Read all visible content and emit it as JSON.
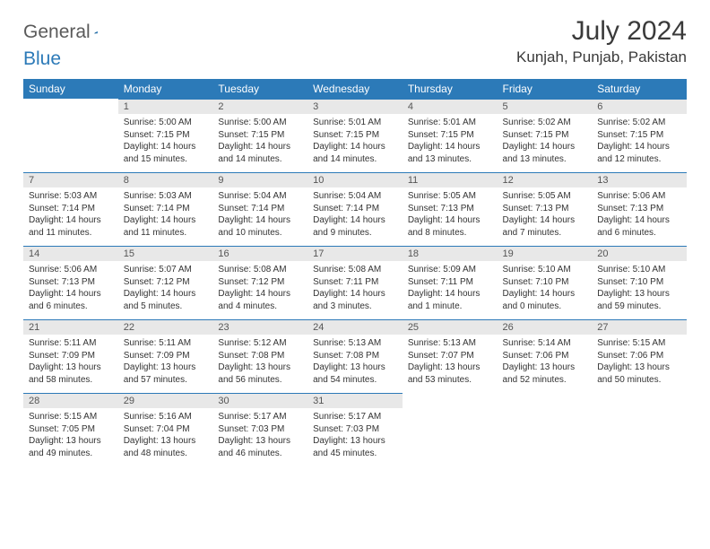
{
  "brand": {
    "part1": "General",
    "part2": "Blue"
  },
  "title": "July 2024",
  "location": "Kunjah, Punjab, Pakistan",
  "colors": {
    "accent": "#2c7ab8",
    "daynum_bg": "#e8e8e8",
    "text": "#333333"
  },
  "weekdays": [
    "Sunday",
    "Monday",
    "Tuesday",
    "Wednesday",
    "Thursday",
    "Friday",
    "Saturday"
  ],
  "weeks": [
    [
      {
        "empty": true
      },
      {
        "n": "1",
        "sr": "5:00 AM",
        "ss": "7:15 PM",
        "dl": "14 hours and 15 minutes."
      },
      {
        "n": "2",
        "sr": "5:00 AM",
        "ss": "7:15 PM",
        "dl": "14 hours and 14 minutes."
      },
      {
        "n": "3",
        "sr": "5:01 AM",
        "ss": "7:15 PM",
        "dl": "14 hours and 14 minutes."
      },
      {
        "n": "4",
        "sr": "5:01 AM",
        "ss": "7:15 PM",
        "dl": "14 hours and 13 minutes."
      },
      {
        "n": "5",
        "sr": "5:02 AM",
        "ss": "7:15 PM",
        "dl": "14 hours and 13 minutes."
      },
      {
        "n": "6",
        "sr": "5:02 AM",
        "ss": "7:15 PM",
        "dl": "14 hours and 12 minutes."
      }
    ],
    [
      {
        "n": "7",
        "sr": "5:03 AM",
        "ss": "7:14 PM",
        "dl": "14 hours and 11 minutes."
      },
      {
        "n": "8",
        "sr": "5:03 AM",
        "ss": "7:14 PM",
        "dl": "14 hours and 11 minutes."
      },
      {
        "n": "9",
        "sr": "5:04 AM",
        "ss": "7:14 PM",
        "dl": "14 hours and 10 minutes."
      },
      {
        "n": "10",
        "sr": "5:04 AM",
        "ss": "7:14 PM",
        "dl": "14 hours and 9 minutes."
      },
      {
        "n": "11",
        "sr": "5:05 AM",
        "ss": "7:13 PM",
        "dl": "14 hours and 8 minutes."
      },
      {
        "n": "12",
        "sr": "5:05 AM",
        "ss": "7:13 PM",
        "dl": "14 hours and 7 minutes."
      },
      {
        "n": "13",
        "sr": "5:06 AM",
        "ss": "7:13 PM",
        "dl": "14 hours and 6 minutes."
      }
    ],
    [
      {
        "n": "14",
        "sr": "5:06 AM",
        "ss": "7:13 PM",
        "dl": "14 hours and 6 minutes."
      },
      {
        "n": "15",
        "sr": "5:07 AM",
        "ss": "7:12 PM",
        "dl": "14 hours and 5 minutes."
      },
      {
        "n": "16",
        "sr": "5:08 AM",
        "ss": "7:12 PM",
        "dl": "14 hours and 4 minutes."
      },
      {
        "n": "17",
        "sr": "5:08 AM",
        "ss": "7:11 PM",
        "dl": "14 hours and 3 minutes."
      },
      {
        "n": "18",
        "sr": "5:09 AM",
        "ss": "7:11 PM",
        "dl": "14 hours and 1 minute."
      },
      {
        "n": "19",
        "sr": "5:10 AM",
        "ss": "7:10 PM",
        "dl": "14 hours and 0 minutes."
      },
      {
        "n": "20",
        "sr": "5:10 AM",
        "ss": "7:10 PM",
        "dl": "13 hours and 59 minutes."
      }
    ],
    [
      {
        "n": "21",
        "sr": "5:11 AM",
        "ss": "7:09 PM",
        "dl": "13 hours and 58 minutes."
      },
      {
        "n": "22",
        "sr": "5:11 AM",
        "ss": "7:09 PM",
        "dl": "13 hours and 57 minutes."
      },
      {
        "n": "23",
        "sr": "5:12 AM",
        "ss": "7:08 PM",
        "dl": "13 hours and 56 minutes."
      },
      {
        "n": "24",
        "sr": "5:13 AM",
        "ss": "7:08 PM",
        "dl": "13 hours and 54 minutes."
      },
      {
        "n": "25",
        "sr": "5:13 AM",
        "ss": "7:07 PM",
        "dl": "13 hours and 53 minutes."
      },
      {
        "n": "26",
        "sr": "5:14 AM",
        "ss": "7:06 PM",
        "dl": "13 hours and 52 minutes."
      },
      {
        "n": "27",
        "sr": "5:15 AM",
        "ss": "7:06 PM",
        "dl": "13 hours and 50 minutes."
      }
    ],
    [
      {
        "n": "28",
        "sr": "5:15 AM",
        "ss": "7:05 PM",
        "dl": "13 hours and 49 minutes."
      },
      {
        "n": "29",
        "sr": "5:16 AM",
        "ss": "7:04 PM",
        "dl": "13 hours and 48 minutes."
      },
      {
        "n": "30",
        "sr": "5:17 AM",
        "ss": "7:03 PM",
        "dl": "13 hours and 46 minutes."
      },
      {
        "n": "31",
        "sr": "5:17 AM",
        "ss": "7:03 PM",
        "dl": "13 hours and 45 minutes."
      },
      {
        "empty": true
      },
      {
        "empty": true
      },
      {
        "empty": true
      }
    ]
  ],
  "labels": {
    "sunrise": "Sunrise:",
    "sunset": "Sunset:",
    "daylight": "Daylight:"
  }
}
